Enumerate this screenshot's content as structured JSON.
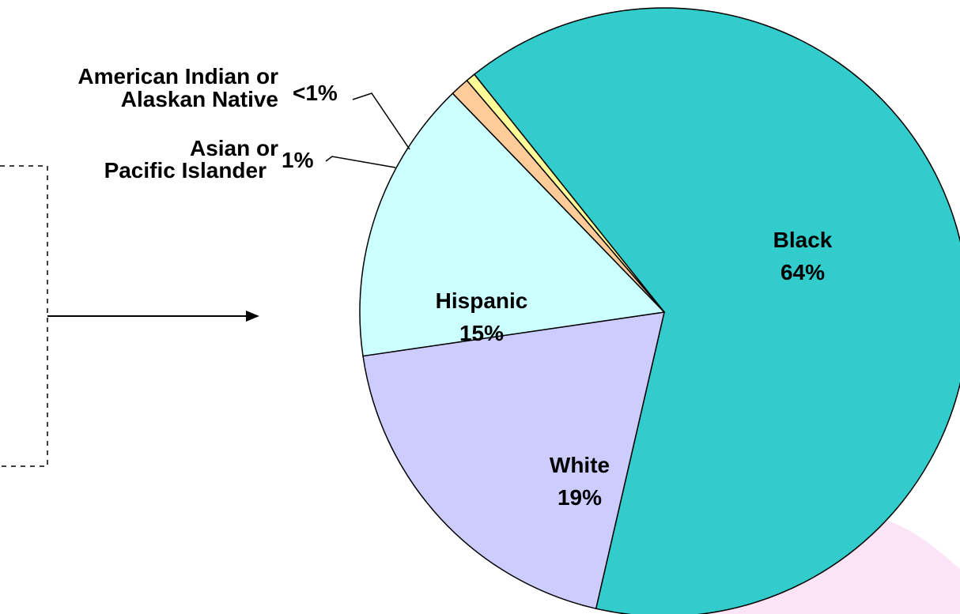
{
  "colors": {
    "background": "#ffffff",
    "watermark": "#f9d9f1"
  },
  "chart_data": {
    "type": "pie",
    "labels": [
      "Black",
      "White",
      "Hispanic",
      "Asian or Pacific Islander",
      "American Indian or Alaskan Native"
    ],
    "display_labels": [
      [
        "Black"
      ],
      [
        "White"
      ],
      [
        "Hispanic"
      ],
      [
        "Asian or",
        "Pacific Islander"
      ],
      [
        "American Indian or",
        "Alaskan Native"
      ]
    ],
    "values": [
      64,
      19,
      15,
      1,
      0.5
    ],
    "value_labels": [
      "64%",
      "19%",
      "15%",
      "1%",
      "<1%"
    ],
    "colors": [
      "#33cccc",
      "#ccccff",
      "#ccffff",
      "#ffcc99",
      "#ffff99"
    ],
    "label_placement": [
      "inside",
      "inside",
      "inside",
      "outside",
      "outside"
    ],
    "title": "",
    "legend": "none"
  }
}
